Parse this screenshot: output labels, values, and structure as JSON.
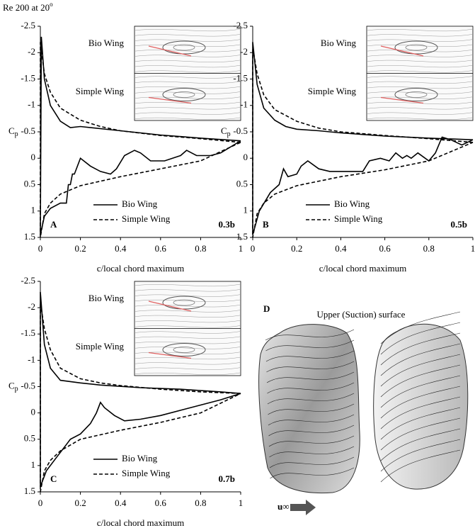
{
  "figure": {
    "title": "Re 200 at 20",
    "title_superscript": "o"
  },
  "chart_data": [
    {
      "type": "line",
      "panel": "A",
      "span": "0.3b",
      "xlabel": "c/local chord maximum",
      "ylabel": "C",
      "ylabel_subscript": "p",
      "inset_labels": [
        "Bio Wing",
        "Simple Wing"
      ],
      "xlim": [
        0,
        1
      ],
      "xticks": [
        0,
        0.2,
        0.4,
        0.6,
        0.8,
        1
      ],
      "ylim": [
        -2.5,
        1.5
      ],
      "y_inverted": true,
      "yticks": [
        -2.5,
        -2,
        -1.5,
        -1,
        -0.5,
        0,
        0.5,
        1,
        1.5
      ],
      "series": [
        {
          "name": "Bio Wing",
          "color": "#000000",
          "line_style": "solid",
          "x": [
            1,
            0.8,
            0.6,
            0.4,
            0.2,
            0.15,
            0.1,
            0.05,
            0.02,
            0.005,
            0,
            0.02,
            0.05,
            0.1,
            0.13,
            0.14,
            0.15,
            0.16,
            0.17,
            0.2,
            0.25,
            0.3,
            0.35,
            0.38,
            0.42,
            0.47,
            0.5,
            0.55,
            0.62,
            0.7,
            0.73,
            0.78,
            0.85,
            0.9,
            1
          ],
          "values": [
            -0.33,
            -0.38,
            -0.44,
            -0.52,
            -0.6,
            -0.58,
            -0.7,
            -1.0,
            -1.5,
            -2.3,
            1.45,
            1.1,
            0.95,
            0.85,
            0.85,
            0.5,
            0.5,
            0.3,
            0.3,
            0.0,
            0.15,
            0.25,
            0.3,
            0.2,
            -0.05,
            -0.15,
            -0.1,
            0.05,
            0.05,
            -0.05,
            -0.15,
            -0.05,
            -0.05,
            -0.1,
            -0.33
          ]
        },
        {
          "name": "Simple Wing",
          "color": "#000000",
          "line_style": "dashed",
          "x": [
            1,
            0.8,
            0.6,
            0.4,
            0.3,
            0.2,
            0.1,
            0.05,
            0.02,
            0,
            0,
            0.02,
            0.05,
            0.1,
            0.2,
            0.4,
            0.6,
            0.8,
            1
          ],
          "values": [
            -0.3,
            -0.37,
            -0.43,
            -0.52,
            -0.6,
            -0.72,
            -0.95,
            -1.25,
            -1.6,
            -2.2,
            1.5,
            1.05,
            0.85,
            0.68,
            0.52,
            0.35,
            0.2,
            0.05,
            -0.3
          ]
        }
      ]
    },
    {
      "type": "line",
      "panel": "B",
      "span": "0.5b",
      "xlabel": "c/local chord maximum",
      "ylabel": "C",
      "ylabel_subscript": "p",
      "inset_labels": [
        "Bio Wing",
        "Simple Wing"
      ],
      "xlim": [
        0,
        1
      ],
      "xticks": [
        0,
        0.2,
        0.4,
        0.6,
        0.8,
        1
      ],
      "ylim": [
        -2.5,
        1.5
      ],
      "y_inverted": true,
      "yticks": [
        -2.5,
        -2,
        -1.5,
        -1,
        -0.5,
        0,
        0.5,
        1,
        1.5
      ],
      "series": [
        {
          "name": "Bio Wing",
          "color": "#000000",
          "line_style": "solid",
          "x": [
            1,
            0.8,
            0.6,
            0.4,
            0.3,
            0.2,
            0.15,
            0.1,
            0.05,
            0.02,
            0,
            0,
            0.03,
            0.08,
            0.12,
            0.14,
            0.16,
            0.2,
            0.22,
            0.25,
            0.3,
            0.35,
            0.45,
            0.5,
            0.53,
            0.58,
            0.62,
            0.65,
            0.68,
            0.7,
            0.72,
            0.75,
            0.8,
            0.83,
            0.86,
            0.9,
            0.95,
            1
          ],
          "values": [
            -0.35,
            -0.38,
            -0.42,
            -0.48,
            -0.52,
            -0.55,
            -0.6,
            -0.72,
            -0.95,
            -1.4,
            -2.2,
            1.45,
            1.0,
            0.65,
            0.5,
            0.2,
            0.35,
            0.3,
            0.15,
            0.05,
            0.2,
            0.25,
            0.25,
            0.25,
            0.05,
            0.0,
            0.05,
            -0.1,
            0.0,
            -0.05,
            0.0,
            -0.1,
            0.05,
            -0.1,
            -0.4,
            -0.35,
            -0.25,
            -0.35
          ]
        },
        {
          "name": "Simple Wing",
          "color": "#000000",
          "line_style": "dashed",
          "x": [
            1,
            0.8,
            0.6,
            0.4,
            0.3,
            0.2,
            0.1,
            0.05,
            0.02,
            0,
            0,
            0.02,
            0.05,
            0.1,
            0.2,
            0.4,
            0.6,
            0.8,
            1
          ],
          "values": [
            -0.3,
            -0.37,
            -0.43,
            -0.5,
            -0.57,
            -0.7,
            -0.92,
            -1.2,
            -1.6,
            -2.1,
            1.5,
            1.05,
            0.85,
            0.68,
            0.52,
            0.35,
            0.22,
            0.05,
            -0.3
          ]
        }
      ]
    },
    {
      "type": "line",
      "panel": "C",
      "span": "0.7b",
      "xlabel": "c/local chord maximum",
      "ylabel": "C",
      "ylabel_subscript": "p",
      "inset_labels": [
        "Bio Wing",
        "Simple Wing"
      ],
      "xlim": [
        0,
        1
      ],
      "xticks": [
        0,
        0.2,
        0.4,
        0.6,
        0.8,
        1
      ],
      "ylim": [
        -2.5,
        1.5
      ],
      "y_inverted": true,
      "yticks": [
        -2.5,
        -2,
        -1.5,
        -1,
        -0.5,
        0,
        0.5,
        1,
        1.5
      ],
      "series": [
        {
          "name": "Bio Wing",
          "color": "#000000",
          "line_style": "solid",
          "x": [
            1,
            0.9,
            0.7,
            0.5,
            0.3,
            0.2,
            0.1,
            0.05,
            0.02,
            0,
            0,
            0.03,
            0.08,
            0.13,
            0.15,
            0.2,
            0.25,
            0.28,
            0.3,
            0.32,
            0.37,
            0.42,
            0.5,
            0.6,
            0.7,
            0.8,
            0.9,
            1
          ],
          "values": [
            -0.37,
            -0.4,
            -0.45,
            -0.48,
            -0.53,
            -0.57,
            -0.62,
            -0.85,
            -1.3,
            -2.3,
            1.4,
            1.1,
            0.85,
            0.6,
            0.5,
            0.4,
            0.2,
            0.0,
            -0.2,
            -0.1,
            0.05,
            0.15,
            0.12,
            0.05,
            -0.05,
            -0.15,
            -0.25,
            -0.37
          ]
        },
        {
          "name": "Simple Wing",
          "color": "#000000",
          "line_style": "dashed",
          "x": [
            1,
            0.8,
            0.6,
            0.4,
            0.3,
            0.2,
            0.1,
            0.05,
            0.02,
            0,
            0,
            0.02,
            0.05,
            0.1,
            0.2,
            0.4,
            0.6,
            0.8,
            1
          ],
          "values": [
            -0.37,
            -0.4,
            -0.45,
            -0.52,
            -0.57,
            -0.65,
            -0.85,
            -1.2,
            -1.6,
            -2.1,
            1.5,
            1.1,
            0.9,
            0.72,
            0.5,
            0.33,
            0.18,
            0.0,
            -0.37
          ]
        }
      ]
    }
  ],
  "panel_d": {
    "panel": "D",
    "caption": "Upper (Suction) surface",
    "flow_label": "u∞"
  }
}
